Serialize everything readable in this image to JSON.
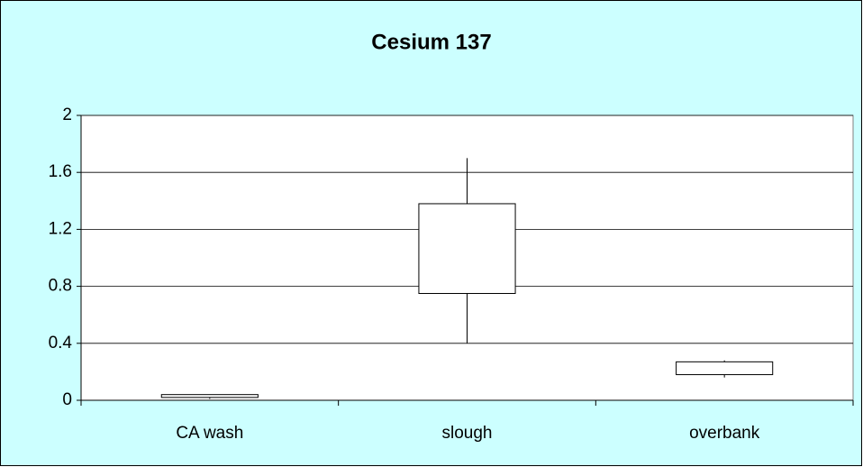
{
  "chart_data": {
    "type": "box",
    "title": "Cesium 137",
    "categories": [
      "CA wash",
      "slough",
      "overbank"
    ],
    "min": [
      0.01,
      0.4,
      0.16
    ],
    "q1": [
      0.02,
      0.75,
      0.18
    ],
    "q3": [
      0.04,
      1.38,
      0.27
    ],
    "max": [
      0.04,
      1.7,
      0.28
    ],
    "ylim": [
      0,
      2
    ],
    "yticks": [
      0,
      0.4,
      0.8,
      1.2,
      1.6,
      2
    ],
    "grid": true,
    "background": "#ccffff",
    "box_color": "#ffffff"
  }
}
